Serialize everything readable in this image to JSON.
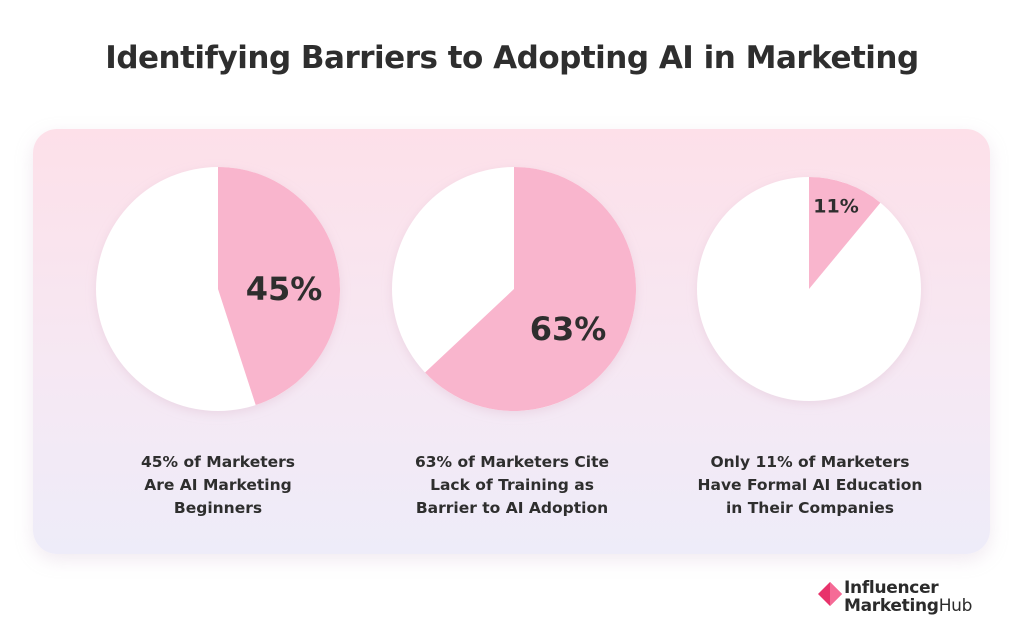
{
  "header": {
    "title": "Identifying Barriers to Adopting AI in Marketing"
  },
  "colors": {
    "slice": "#f9b5cd",
    "remainder": "#ffffff",
    "text": "#2e2e2e"
  },
  "chart_data": [
    {
      "type": "pie",
      "slices": [
        {
          "label": "45%",
          "value": 45
        },
        {
          "value": 55
        }
      ],
      "caption": [
        "45% of Marketers",
        "Are AI Marketing",
        "Beginners"
      ]
    },
    {
      "type": "pie",
      "slices": [
        {
          "label": "63%",
          "value": 63
        },
        {
          "value": 37
        }
      ],
      "caption": [
        "63% of Marketers Cite",
        "Lack of Training as",
        "Barrier to AI Adoption"
      ]
    },
    {
      "type": "pie",
      "slices": [
        {
          "label": "11%",
          "value": 11
        },
        {
          "value": 89
        }
      ],
      "caption": [
        "Only 11% of Marketers",
        "Have Formal AI Education",
        "in Their Companies"
      ]
    }
  ],
  "logo": {
    "line1": "Influencer",
    "line2_bold": "Marketing",
    "line2_regular": "Hub"
  }
}
